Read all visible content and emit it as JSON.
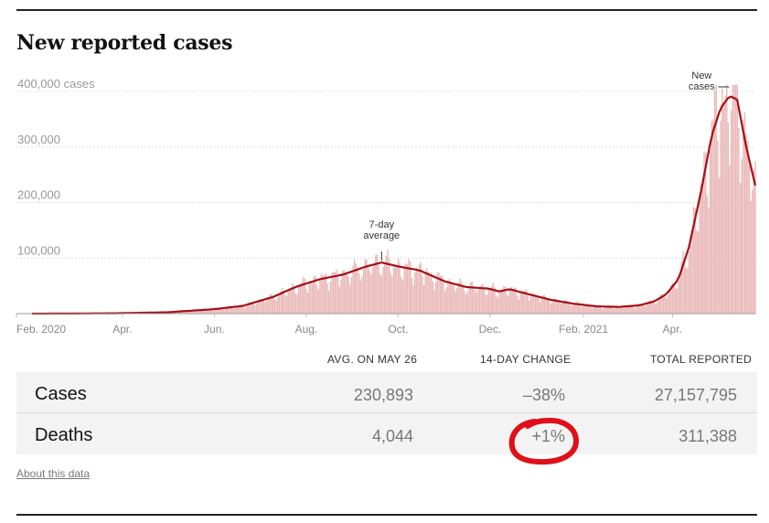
{
  "title": "New reported cases",
  "chart_data": {
    "type": "bar",
    "ylim": [
      0,
      400000
    ],
    "y_ticks": [
      {
        "value": 400000,
        "label": "400,000 cases"
      },
      {
        "value": 300000,
        "label": "300,000"
      },
      {
        "value": 200000,
        "label": "200,000"
      },
      {
        "value": 100000,
        "label": "100,000"
      }
    ],
    "x_ticks": [
      "Feb. 2020",
      "Apr.",
      "Jun.",
      "Aug.",
      "Oct.",
      "Dec.",
      "Feb. 2021",
      "Apr."
    ],
    "grid": true,
    "bar_color": "#eab8b8",
    "line_color": "#a50f15",
    "series_bars": "New cases",
    "series_line": "7-day average",
    "annotations": [
      {
        "text": [
          "7-day",
          "average"
        ],
        "target": "7-day average peak (summer 2020)"
      },
      {
        "text": [
          "New",
          "cases"
        ],
        "target": "daily new cases peak (Apr. 2021)"
      }
    ],
    "seven_day_average": [
      {
        "date": "2020-02-01",
        "value": 0
      },
      {
        "date": "2020-03-01",
        "value": 200
      },
      {
        "date": "2020-04-01",
        "value": 800
      },
      {
        "date": "2020-05-01",
        "value": 2500
      },
      {
        "date": "2020-06-01",
        "value": 8000
      },
      {
        "date": "2020-06-20",
        "value": 14000
      },
      {
        "date": "2020-07-10",
        "value": 30000
      },
      {
        "date": "2020-07-25",
        "value": 48000
      },
      {
        "date": "2020-08-10",
        "value": 62000
      },
      {
        "date": "2020-08-25",
        "value": 70000
      },
      {
        "date": "2020-09-10",
        "value": 85000
      },
      {
        "date": "2020-09-20",
        "value": 92000
      },
      {
        "date": "2020-10-01",
        "value": 85000
      },
      {
        "date": "2020-10-15",
        "value": 78000
      },
      {
        "date": "2020-11-01",
        "value": 58000
      },
      {
        "date": "2020-11-15",
        "value": 48000
      },
      {
        "date": "2020-11-30",
        "value": 45000
      },
      {
        "date": "2020-12-07",
        "value": 40000
      },
      {
        "date": "2020-12-14",
        "value": 44000
      },
      {
        "date": "2020-12-25",
        "value": 36000
      },
      {
        "date": "2021-01-10",
        "value": 25000
      },
      {
        "date": "2021-01-25",
        "value": 18000
      },
      {
        "date": "2021-02-10",
        "value": 13000
      },
      {
        "date": "2021-02-25",
        "value": 12000
      },
      {
        "date": "2021-03-10",
        "value": 15000
      },
      {
        "date": "2021-03-20",
        "value": 22000
      },
      {
        "date": "2021-03-28",
        "value": 35000
      },
      {
        "date": "2021-04-05",
        "value": 62000
      },
      {
        "date": "2021-04-12",
        "value": 120000
      },
      {
        "date": "2021-04-20",
        "value": 220000
      },
      {
        "date": "2021-04-27",
        "value": 320000
      },
      {
        "date": "2021-05-03",
        "value": 370000
      },
      {
        "date": "2021-05-09",
        "value": 392000
      },
      {
        "date": "2021-05-14",
        "value": 385000
      },
      {
        "date": "2021-05-20",
        "value": 300000
      },
      {
        "date": "2021-05-26",
        "value": 230893
      }
    ]
  },
  "stats": {
    "headers": [
      "AVG. ON MAY 26",
      "14-DAY CHANGE",
      "TOTAL REPORTED"
    ],
    "rows": [
      {
        "label": "Cases",
        "avg": "230,893",
        "change": "–38%",
        "total": "27,157,795"
      },
      {
        "label": "Deaths",
        "avg": "4,044",
        "change": "+1%",
        "total": "311,388"
      }
    ],
    "highlight_color": "#e0101a"
  },
  "about_link": "About this data"
}
